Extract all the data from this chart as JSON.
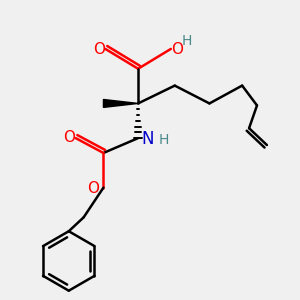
{
  "background_color": "#f0f0f0",
  "colors": {
    "O": "#ff0000",
    "N": "#0000cd",
    "C": "#000000",
    "H": "#4a8a8a",
    "background": "#f0f0f0"
  },
  "figsize": [
    3.0,
    3.0
  ],
  "dpi": 100
}
